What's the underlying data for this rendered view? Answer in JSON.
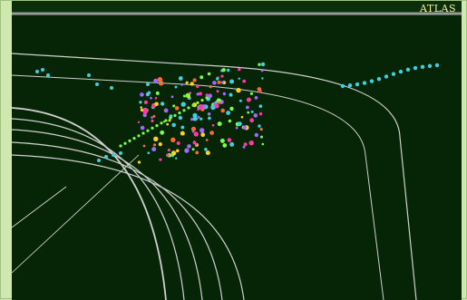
{
  "viewer": {
    "logo_text": "ATLAS",
    "background_color": "#062506",
    "frame_color": "#cfe8b0",
    "detector_line_color": "#cfcfcf",
    "track_colors": [
      "#3fd0e0",
      "#7cfc4a",
      "#ff3aa0",
      "#ffd21a",
      "#9f6bff",
      "#ff6a2a"
    ]
  }
}
